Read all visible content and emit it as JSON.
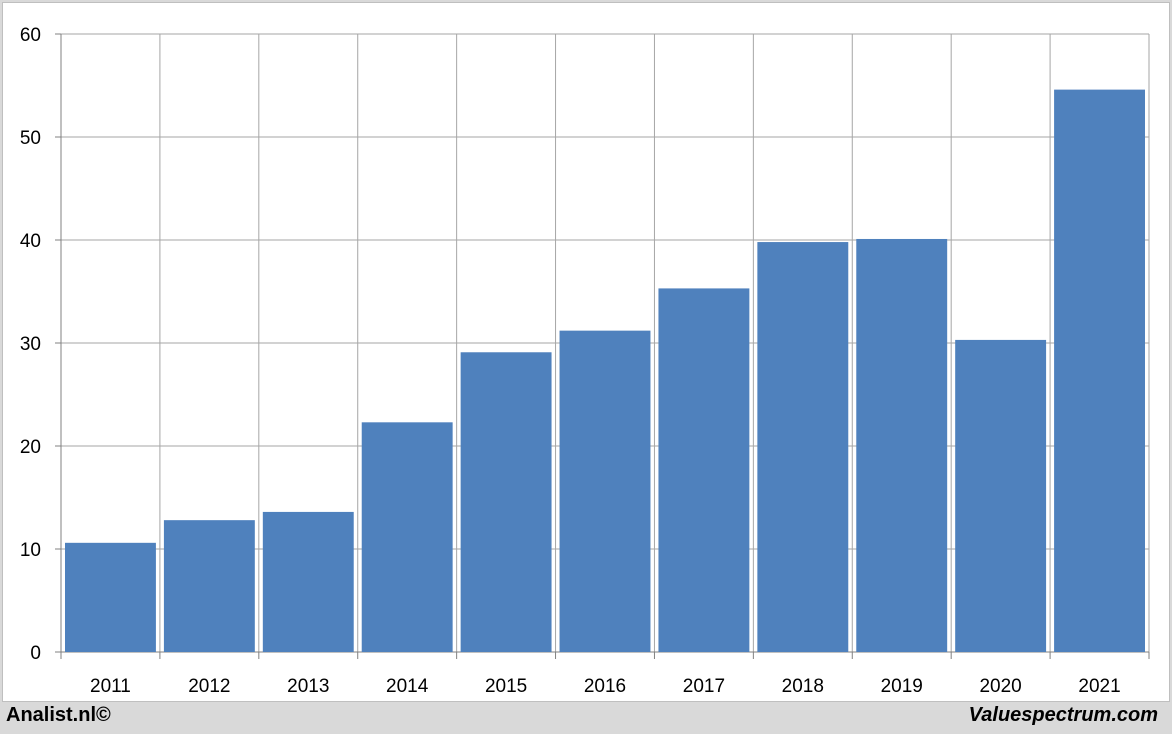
{
  "chart_data": {
    "type": "bar",
    "categories": [
      "2011",
      "2012",
      "2013",
      "2014",
      "2015",
      "2016",
      "2017",
      "2018",
      "2019",
      "2020",
      "2021"
    ],
    "values": [
      10.6,
      12.8,
      13.6,
      22.3,
      29.1,
      31.2,
      35.3,
      39.8,
      40.1,
      30.3,
      54.6
    ],
    "title": "",
    "xlabel": "",
    "ylabel": "",
    "ylim": [
      0,
      60
    ],
    "yticks": [
      "0",
      "10",
      "20",
      "30",
      "40",
      "50",
      "60"
    ],
    "grid": true,
    "bar_color": "#4f81bd",
    "grid_color": "#a6a6a6"
  },
  "footer": {
    "left_text": "Analist.nl©",
    "right_text": "Valuespectrum.com"
  }
}
